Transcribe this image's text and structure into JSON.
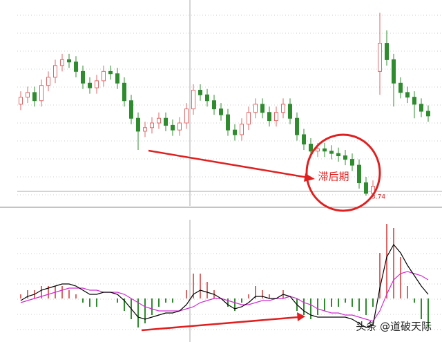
{
  "chart_data": [
    {
      "type": "candlestick",
      "open": [
        4.52,
        4.58,
        4.62,
        4.55,
        4.68,
        4.75,
        4.85,
        4.9,
        4.88,
        4.8,
        4.7,
        4.66,
        4.72,
        4.8,
        4.78,
        4.7,
        4.55,
        4.4,
        4.29,
        4.32,
        4.36,
        4.4,
        4.34,
        4.3,
        4.36,
        4.48,
        4.64,
        4.6,
        4.55,
        4.48,
        4.43,
        4.3,
        4.26,
        4.35,
        4.45,
        4.52,
        4.45,
        4.38,
        4.45,
        4.52,
        4.4,
        4.26,
        4.18,
        4.12,
        4.14,
        4.12,
        4.1,
        4.08,
        4.05,
        4.0,
        3.85,
        3.76,
        4.8,
        5.04,
        4.9,
        4.7,
        4.62,
        4.58,
        4.52,
        4.46
      ],
      "high": [
        4.63,
        4.67,
        4.67,
        4.73,
        4.8,
        4.9,
        4.95,
        4.95,
        4.93,
        4.85,
        4.75,
        4.77,
        4.85,
        4.85,
        4.83,
        4.75,
        4.6,
        4.45,
        4.37,
        4.41,
        4.45,
        4.45,
        4.39,
        4.41,
        4.53,
        4.69,
        4.69,
        4.65,
        4.6,
        4.53,
        4.48,
        4.35,
        4.4,
        4.5,
        4.57,
        4.57,
        4.5,
        4.5,
        4.57,
        4.57,
        4.45,
        4.31,
        4.23,
        4.19,
        4.19,
        4.17,
        4.15,
        4.13,
        4.1,
        4.05,
        3.9,
        3.87,
        5.3,
        5.15,
        4.95,
        4.75,
        4.67,
        4.63,
        4.57,
        4.51
      ],
      "low": [
        4.47,
        4.53,
        4.5,
        4.5,
        4.63,
        4.7,
        4.8,
        4.83,
        4.75,
        4.65,
        4.61,
        4.61,
        4.67,
        4.73,
        4.65,
        4.5,
        4.35,
        4.13,
        4.24,
        4.27,
        4.31,
        4.29,
        4.25,
        4.25,
        4.31,
        4.43,
        4.55,
        4.5,
        4.43,
        4.38,
        4.25,
        4.21,
        4.21,
        4.3,
        4.4,
        4.4,
        4.33,
        4.33,
        4.4,
        4.35,
        4.21,
        4.13,
        4.07,
        4.07,
        4.07,
        4.05,
        4.03,
        4.0,
        3.95,
        3.8,
        3.74,
        3.75,
        4.6,
        4.85,
        4.5,
        4.57,
        4.53,
        4.4,
        4.41,
        4.37
      ],
      "close": [
        4.58,
        4.62,
        4.55,
        4.68,
        4.75,
        4.85,
        4.9,
        4.88,
        4.8,
        4.7,
        4.66,
        4.72,
        4.8,
        4.78,
        4.7,
        4.55,
        4.4,
        4.29,
        4.32,
        4.36,
        4.4,
        4.34,
        4.3,
        4.36,
        4.48,
        4.64,
        4.6,
        4.55,
        4.48,
        4.43,
        4.3,
        4.26,
        4.35,
        4.45,
        4.52,
        4.45,
        4.38,
        4.45,
        4.52,
        4.4,
        4.26,
        4.18,
        4.12,
        4.14,
        4.12,
        4.1,
        4.08,
        4.05,
        4.0,
        3.85,
        3.76,
        3.82,
        5.04,
        4.9,
        4.7,
        4.62,
        4.58,
        4.52,
        4.46,
        4.42
      ],
      "up_color": "#e06666",
      "down_color": "#2e8b2e",
      "ylim": [
        3.7,
        5.35
      ],
      "annotation": "滞后期"
    },
    {
      "type": "macd",
      "histogram": [
        0.02,
        0.04,
        0.04,
        0.06,
        0.06,
        0.06,
        0.06,
        0.04,
        0.02,
        -0.02,
        -0.04,
        -0.04,
        0,
        0,
        -0.02,
        -0.06,
        -0.1,
        -0.14,
        -0.12,
        -0.08,
        -0.04,
        -0.02,
        -0.02,
        0,
        0.04,
        0.12,
        0.12,
        0.08,
        0.04,
        0,
        -0.04,
        -0.06,
        -0.02,
        0.02,
        0.06,
        0.04,
        0.02,
        0,
        0.04,
        0,
        -0.06,
        -0.08,
        -0.1,
        -0.08,
        -0.06,
        -0.04,
        -0.04,
        -0.02,
        -0.04,
        -0.06,
        -0.08,
        -0.04,
        0.22,
        0.36,
        0.34,
        0.2,
        0.06,
        -0.02,
        -0.1,
        -0.14
      ],
      "dif": [
        -0.01,
        0.01,
        0.02,
        0.04,
        0.05,
        0.06,
        0.07,
        0.07,
        0.06,
        0.04,
        0.02,
        0.02,
        0.03,
        0.03,
        0.02,
        -0.01,
        -0.05,
        -0.09,
        -0.1,
        -0.09,
        -0.08,
        -0.07,
        -0.07,
        -0.06,
        -0.03,
        0.02,
        0.04,
        0.03,
        0.02,
        0.0,
        -0.03,
        -0.05,
        -0.04,
        -0.02,
        0.01,
        0.01,
        0.0,
        0.0,
        0.02,
        0.01,
        -0.03,
        -0.06,
        -0.08,
        -0.09,
        -0.09,
        -0.09,
        -0.09,
        -0.09,
        -0.1,
        -0.12,
        -0.14,
        -0.13,
        0.05,
        0.2,
        0.26,
        0.22,
        0.16,
        0.11,
        0.06,
        0.02
      ],
      "dea": [
        -0.02,
        -0.01,
        0.0,
        0.01,
        0.02,
        0.03,
        0.04,
        0.05,
        0.05,
        0.05,
        0.04,
        0.04,
        0.03,
        0.03,
        0.03,
        0.02,
        0.0,
        -0.02,
        -0.04,
        -0.05,
        -0.06,
        -0.06,
        -0.06,
        -0.06,
        -0.05,
        -0.04,
        -0.02,
        -0.01,
        0.0,
        0.0,
        -0.01,
        -0.02,
        -0.03,
        -0.03,
        -0.02,
        -0.01,
        -0.01,
        0.0,
        0.0,
        0.01,
        0.0,
        -0.02,
        -0.03,
        -0.05,
        -0.06,
        -0.07,
        -0.07,
        -0.08,
        -0.08,
        -0.09,
        -0.1,
        -0.11,
        -0.06,
        0.02,
        0.09,
        0.12,
        0.13,
        0.12,
        0.11,
        0.09
      ],
      "up_color": "#e06666",
      "down_color": "#2e8b2e",
      "dif_color": "#000000",
      "dea_color": "#d22bd2",
      "ylim": [
        -0.2,
        0.38
      ]
    }
  ],
  "watermark": "头条 @道破天际"
}
